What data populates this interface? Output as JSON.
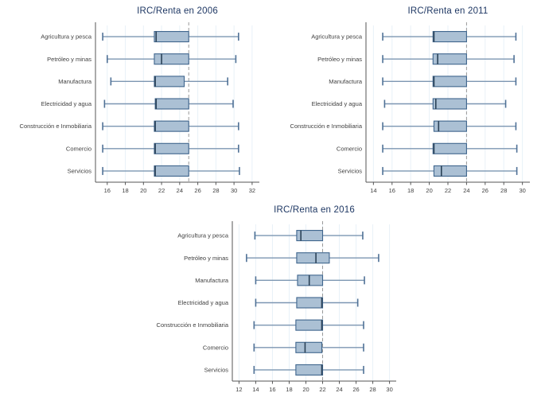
{
  "page": {
    "background": "#ffffff"
  },
  "colors": {
    "box_fill": "#ABC0D4",
    "box_border": "#3F658D",
    "whisker_line": "#7C96B2",
    "whisker_cap": "#4F7196",
    "median_line": "#2B4257",
    "grid_line": "#E8F1F8",
    "ref_line": "#9A9A9A",
    "axis_line": "#555555",
    "tick_text": "#3F3F3F",
    "label_text": "#3F3F3F",
    "title_text": "#1F3864"
  },
  "chart_data": [
    {
      "type": "boxplot",
      "orientation": "horizontal",
      "title": "IRC/Renta en 2006",
      "xlabel": "",
      "ylabel": "",
      "grid": true,
      "legend": false,
      "x_ticks": [
        16,
        18,
        20,
        22,
        24,
        26,
        28,
        30,
        32
      ],
      "xlim": [
        14.7,
        32.8
      ],
      "ref_line_x": 25,
      "categories": [
        "Agricultura y pesca",
        "Petróleo y minas",
        "Manufactura",
        "Electricidad y agua",
        "Construcción e Inmobiliaria",
        "Comercio",
        "Servicios"
      ],
      "series": [
        {
          "category": "Agricultura y pesca",
          "whisker_low": 15.5,
          "q1": 21.2,
          "median": 21.4,
          "q3": 25.0,
          "whisker_high": 30.5
        },
        {
          "category": "Petróleo y minas",
          "whisker_low": 16.0,
          "q1": 21.2,
          "median": 22.0,
          "q3": 25.0,
          "whisker_high": 30.2
        },
        {
          "category": "Manufactura",
          "whisker_low": 16.4,
          "q1": 21.2,
          "median": 21.3,
          "q3": 24.5,
          "whisker_high": 29.3
        },
        {
          "category": "Electricidad y agua",
          "whisker_low": 15.7,
          "q1": 21.3,
          "median": 21.4,
          "q3": 25.0,
          "whisker_high": 29.9
        },
        {
          "category": "Construcción e Inmobiliaria",
          "whisker_low": 15.5,
          "q1": 21.2,
          "median": 21.3,
          "q3": 25.0,
          "whisker_high": 30.5
        },
        {
          "category": "Comercio",
          "whisker_low": 15.5,
          "q1": 21.2,
          "median": 21.3,
          "q3": 25.0,
          "whisker_high": 30.5
        },
        {
          "category": "Servicios",
          "whisker_low": 15.5,
          "q1": 21.2,
          "median": 21.3,
          "q3": 25.0,
          "whisker_high": 30.6
        }
      ]
    },
    {
      "type": "boxplot",
      "orientation": "horizontal",
      "title": "IRC/Renta en 2011",
      "xlabel": "",
      "ylabel": "",
      "grid": true,
      "legend": false,
      "x_ticks": [
        14,
        16,
        18,
        20,
        22,
        24,
        26,
        28,
        30
      ],
      "xlim": [
        13.2,
        30.8
      ],
      "ref_line_x": 24,
      "categories": [
        "Agricultura y pesca",
        "Petróleo y minas",
        "Manufactura",
        "Electricidad y agua",
        "Construcción e Inmobiliaria",
        "Comercio",
        "Servicios"
      ],
      "series": [
        {
          "category": "Agricultura y pesca",
          "whisker_low": 15.0,
          "q1": 20.4,
          "median": 20.5,
          "q3": 24.0,
          "whisker_high": 29.3
        },
        {
          "category": "Petróleo y minas",
          "whisker_low": 15.0,
          "q1": 20.4,
          "median": 20.9,
          "q3": 24.0,
          "whisker_high": 29.1
        },
        {
          "category": "Manufactura",
          "whisker_low": 15.0,
          "q1": 20.4,
          "median": 20.5,
          "q3": 24.0,
          "whisker_high": 29.3
        },
        {
          "category": "Electricidad y agua",
          "whisker_low": 15.2,
          "q1": 20.4,
          "median": 20.7,
          "q3": 24.0,
          "whisker_high": 28.2
        },
        {
          "category": "Construcción e Inmobiliaria",
          "whisker_low": 15.0,
          "q1": 20.5,
          "median": 21.0,
          "q3": 24.0,
          "whisker_high": 29.3
        },
        {
          "category": "Comercio",
          "whisker_low": 15.0,
          "q1": 20.4,
          "median": 20.5,
          "q3": 24.0,
          "whisker_high": 29.4
        },
        {
          "category": "Servicios",
          "whisker_low": 15.0,
          "q1": 20.5,
          "median": 21.3,
          "q3": 24.0,
          "whisker_high": 29.4
        }
      ]
    },
    {
      "type": "boxplot",
      "orientation": "horizontal",
      "title": "IRC/Renta en 2016",
      "xlabel": "",
      "ylabel": "",
      "grid": true,
      "legend": false,
      "x_ticks": [
        12,
        14,
        16,
        18,
        20,
        22,
        24,
        26,
        28,
        30
      ],
      "xlim": [
        11.2,
        30.8
      ],
      "ref_line_x": 22,
      "categories": [
        "Agricultura y pesca",
        "Petróleo y minas",
        "Manufactura",
        "Electricidad y agua",
        "Construcción e Inmobiliaria",
        "Comercio",
        "Servicios"
      ],
      "series": [
        {
          "category": "Agricultura y pesca",
          "whisker_low": 13.9,
          "q1": 18.9,
          "median": 19.4,
          "q3": 22.0,
          "whisker_high": 26.8
        },
        {
          "category": "Petróleo y minas",
          "whisker_low": 12.9,
          "q1": 18.9,
          "median": 21.2,
          "q3": 22.8,
          "whisker_high": 28.7
        },
        {
          "category": "Manufactura",
          "whisker_low": 14.0,
          "q1": 19.0,
          "median": 20.4,
          "q3": 22.0,
          "whisker_high": 27.0
        },
        {
          "category": "Electricidad y agua",
          "whisker_low": 14.0,
          "q1": 18.9,
          "median": 21.9,
          "q3": 22.0,
          "whisker_high": 26.2
        },
        {
          "category": "Construcción e Inmobiliaria",
          "whisker_low": 13.8,
          "q1": 18.8,
          "median": 21.9,
          "q3": 22.0,
          "whisker_high": 26.9
        },
        {
          "category": "Comercio",
          "whisker_low": 13.8,
          "q1": 18.8,
          "median": 19.9,
          "q3": 21.9,
          "whisker_high": 26.9
        },
        {
          "category": "Servicios",
          "whisker_low": 13.8,
          "q1": 18.8,
          "median": 21.9,
          "q3": 22.0,
          "whisker_high": 26.9
        }
      ]
    }
  ]
}
